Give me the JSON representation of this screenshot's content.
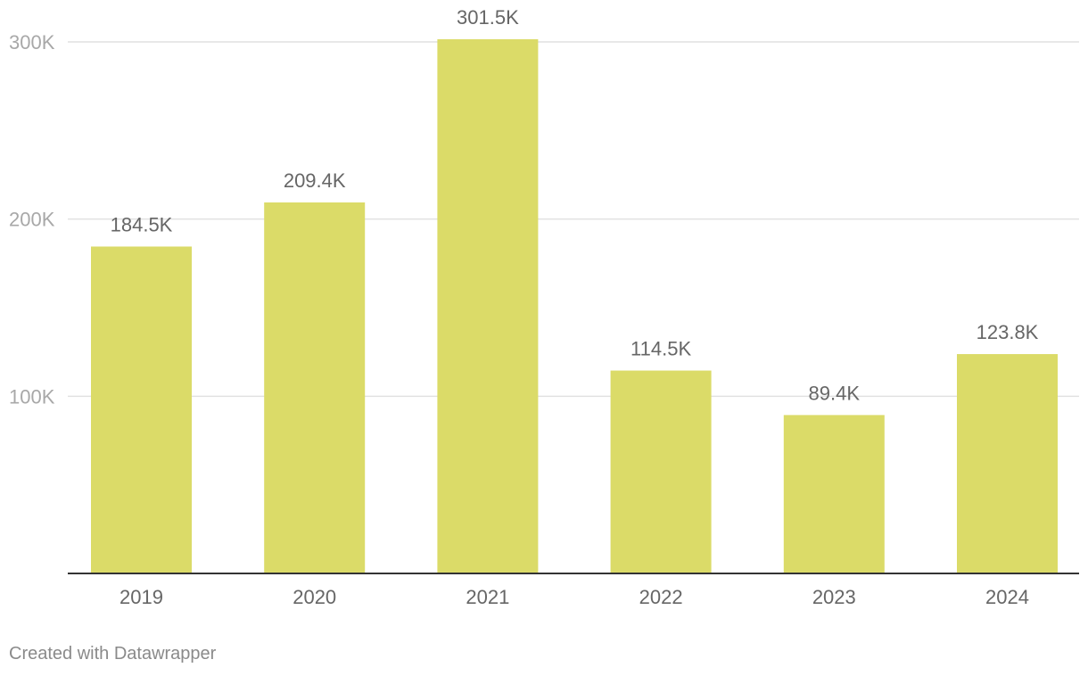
{
  "chart_data": {
    "type": "bar",
    "categories": [
      "2019",
      "2020",
      "2021",
      "2022",
      "2023",
      "2024"
    ],
    "values": [
      184500,
      209400,
      301500,
      114500,
      89400,
      123800
    ],
    "value_labels": [
      "184.5K",
      "209.4K",
      "301.5K",
      "114.5K",
      "89.4K",
      "123.8K"
    ],
    "y_ticks": [
      100000,
      200000,
      300000
    ],
    "y_tick_labels": [
      "100K",
      "200K",
      "300K"
    ],
    "ylim": [
      0,
      300000
    ],
    "bar_color": "#dbdb68",
    "title": "",
    "xlabel": "",
    "ylabel": ""
  },
  "footer": {
    "credit": "Created with Datawrapper"
  }
}
